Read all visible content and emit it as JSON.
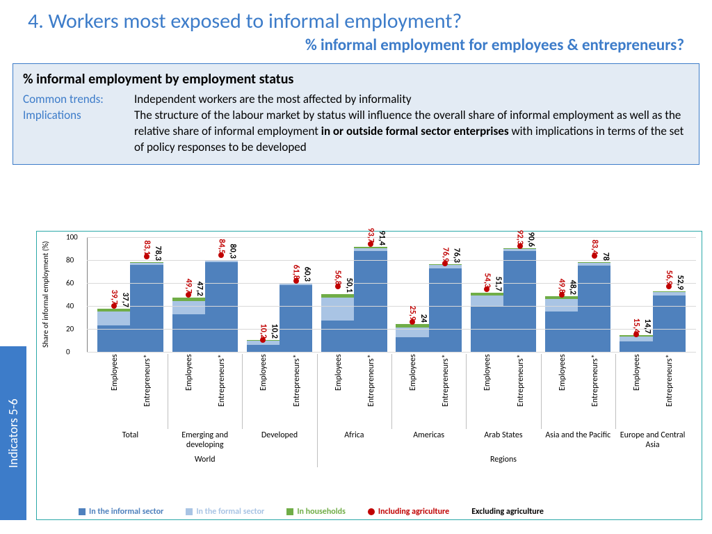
{
  "title": "4.  Workers most exposed to informal employment?",
  "subtitle": "% informal employment for employees & entrepreneurs?",
  "info_box": {
    "heading": "% informal employment by employment status",
    "trends_label": "Common trends",
    "trends_text": "Independent workers are the most affected by informality",
    "implications_label": "Implications",
    "implications_text_1": "The structure of the labour market by status will influence the overall share of informal employment as well as the relative share of informal employment ",
    "implications_bold": "in or outside formal sector enterprises",
    "implications_text_2": " with implications in terms of the set of policy responses to be developed"
  },
  "side_tab": "Indicators  5-6",
  "chart": {
    "ylabel": "Share of informal employment (%)",
    "ylim": [
      0,
      100
    ],
    "ytick_step": 20,
    "colors": {
      "informal": "#4f81bd",
      "formal": "#a9c4e4",
      "households": "#70ad47",
      "incl_agri": "#c00000",
      "grid": "#d9d9d9"
    },
    "groups": [
      {
        "name": "Total",
        "super": "World",
        "emp": {
          "informal": 23,
          "formal": 12,
          "households": 2.7,
          "total": 37.7,
          "incl": 39.7
        },
        "ent": {
          "informal": 76,
          "formal": 1.5,
          "households": 0.8,
          "total": 78.3,
          "incl": 83.1
        }
      },
      {
        "name": "Emerging and developing",
        "super": "World",
        "emp": {
          "informal": 33,
          "formal": 11,
          "households": 3.2,
          "total": 47.2,
          "incl": 49.7
        },
        "ent": {
          "informal": 78,
          "formal": 1.5,
          "households": 0.8,
          "total": 80.3,
          "incl": 84.5
        }
      },
      {
        "name": "Developed",
        "super": "World",
        "emp": {
          "informal": 6,
          "formal": 3.5,
          "households": 0.7,
          "total": 10.2,
          "incl": 10.2
        },
        "ent": {
          "informal": 58,
          "formal": 1.8,
          "households": 0.5,
          "total": 60.3,
          "incl": 61.8
        }
      },
      {
        "name": "Africa",
        "super": "Regions",
        "emp": {
          "informal": 27,
          "formal": 20,
          "households": 3.1,
          "total": 50.1,
          "incl": 56.8
        },
        "ent": {
          "informal": 88,
          "formal": 2.5,
          "households": 0.9,
          "total": 91.4,
          "incl": 93.7
        }
      },
      {
        "name": "Americas",
        "super": "Regions",
        "emp": {
          "informal": 13,
          "formal": 8,
          "households": 3.0,
          "total": 24.0,
          "incl": 25.9
        },
        "ent": {
          "informal": 73,
          "formal": 2.5,
          "households": 0.8,
          "total": 76.3,
          "incl": 76.9
        }
      },
      {
        "name": "Arab States",
        "super": "Regions",
        "emp": {
          "informal": 40,
          "formal": 9,
          "households": 2.7,
          "total": 51.7,
          "incl": 54.3
        },
        "ent": {
          "informal": 88,
          "formal": 2,
          "households": 0.6,
          "total": 90.6,
          "incl": 92.3
        }
      },
      {
        "name": "Asia and the Pacific",
        "super": "Regions",
        "emp": {
          "informal": 35,
          "formal": 11,
          "households": 2.2,
          "total": 48.2,
          "incl": 49.8
        },
        "ent": {
          "informal": 75,
          "formal": 2.3,
          "households": 0.7,
          "total": 78.0,
          "incl": 83.4
        }
      },
      {
        "name": "Europe and Central Asia",
        "super": "Regions",
        "emp": {
          "informal": 9,
          "formal": 4.5,
          "households": 1.2,
          "total": 14.7,
          "incl": 15.4
        },
        "ent": {
          "informal": 49,
          "formal": 3,
          "households": 0.9,
          "total": 52.9,
          "incl": 56.9
        }
      }
    ],
    "x_cols": [
      "Employees",
      "Entrepreneurs*"
    ],
    "legend": {
      "informal": "In the informal sector",
      "formal": "In the formal sector",
      "households": "In households",
      "incl_agri": "Including agriculture",
      "excl_agri": "Excluding agriculture"
    }
  }
}
